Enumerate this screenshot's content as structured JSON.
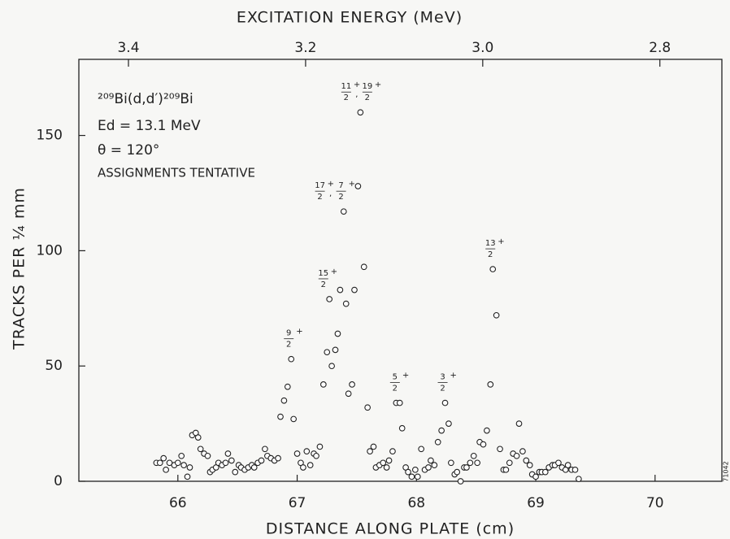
{
  "chart_data": {
    "type": "scatter",
    "x2label": "EXCITATION ENERGY (MeV)",
    "xlabel": "DISTANCE ALONG PLATE (cm)",
    "ylabel": "TRACKS PER ¼ mm",
    "info": [
      "²⁰⁹Bi(d,d′)²⁰⁹Bi",
      "Ed = 13.1 MeV",
      "θ  = 120°",
      "ASSIGNMENTS TENTATIVE"
    ],
    "figure_id": "71042",
    "xlim": [
      65.17,
      70.56
    ],
    "xticks": [
      66,
      67,
      68,
      69,
      70
    ],
    "x2lim": [
      3.456,
      2.73
    ],
    "x2ticks": [
      3.4,
      3.2,
      {
        "value": 3,
        "label": "3.0"
      },
      2.8
    ],
    "ylim": [
      0,
      183
    ],
    "yticks": [
      0,
      50,
      100,
      150
    ],
    "series": [
      {
        "name": "data",
        "color": "#222222",
        "x": [
          65.82,
          65.85,
          65.88,
          65.9,
          65.93,
          65.97,
          66.0,
          66.03,
          66.05,
          66.08,
          66.1,
          66.12,
          66.15,
          66.17,
          66.19,
          66.22,
          66.25,
          66.27,
          66.29,
          66.32,
          66.34,
          66.37,
          66.4,
          66.42,
          66.45,
          66.48,
          66.51,
          66.53,
          66.56,
          66.59,
          66.62,
          66.64,
          66.67,
          66.7,
          66.73,
          66.75,
          66.78,
          66.81,
          66.84,
          66.86,
          66.89,
          66.92,
          66.95,
          66.97,
          67.0,
          67.03,
          67.05,
          67.08,
          67.11,
          67.14,
          67.16,
          67.19,
          67.22,
          67.25,
          67.27,
          67.29,
          67.32,
          67.34,
          67.36,
          67.39,
          67.41,
          67.43,
          67.46,
          67.48,
          67.51,
          67.53,
          67.56,
          67.59,
          67.61,
          67.64,
          67.66,
          67.69,
          67.72,
          67.75,
          67.77,
          67.8,
          67.83,
          67.86,
          67.88,
          67.91,
          67.93,
          67.96,
          67.99,
          68.01,
          68.04,
          68.07,
          68.1,
          68.12,
          68.15,
          68.18,
          68.21,
          68.24,
          68.27,
          68.29,
          68.32,
          68.34,
          68.37,
          68.4,
          68.42,
          68.45,
          68.48,
          68.51,
          68.53,
          68.56,
          68.59,
          68.62,
          68.64,
          68.67,
          68.7,
          68.73,
          68.75,
          68.78,
          68.81,
          68.84,
          68.86,
          68.89,
          68.92,
          68.95,
          68.97,
          69.0,
          69.03,
          69.05,
          69.08,
          69.11,
          69.14,
          69.16,
          69.19,
          69.22,
          69.25,
          69.27,
          69.3,
          69.33,
          69.36
        ],
        "values": [
          8,
          8,
          10,
          5,
          8,
          7,
          8,
          11,
          7,
          2,
          6,
          20,
          21,
          19,
          14,
          12,
          11,
          4,
          5,
          6,
          8,
          7,
          8,
          12,
          9,
          4,
          7,
          6,
          5,
          6,
          7,
          6,
          8,
          9,
          14,
          11,
          10,
          9,
          10,
          28,
          35,
          41,
          53,
          27,
          12,
          8,
          6,
          13,
          7,
          12,
          11,
          15,
          42,
          56,
          79,
          50,
          57,
          64,
          83,
          117,
          77,
          38,
          42,
          83,
          128,
          160,
          93,
          32,
          13,
          15,
          6,
          7,
          8,
          6,
          9,
          13,
          34,
          34,
          23,
          6,
          4,
          2,
          5,
          2,
          14,
          5,
          6,
          9,
          7,
          17,
          22,
          34,
          25,
          8,
          3,
          4,
          0,
          6,
          6,
          8,
          11,
          8,
          17,
          16,
          22,
          42,
          92,
          72,
          14,
          5,
          5,
          8,
          12,
          11,
          25,
          13,
          9,
          7,
          3,
          2,
          4,
          4,
          4,
          6,
          7,
          7,
          8,
          6,
          5,
          7,
          5,
          5,
          1
        ]
      },
      {
        "name": "fit",
        "color": "#111111",
        "x": [
          66.84,
          66.89,
          66.95,
          67.0,
          67.05,
          67.14,
          67.19,
          67.22,
          67.25,
          67.27,
          67.29,
          67.32,
          67.34,
          67.36,
          67.39,
          67.41,
          67.43,
          67.46,
          67.48,
          67.51,
          67.53,
          67.56,
          67.59,
          67.61,
          67.66,
          67.75,
          67.8,
          67.83,
          67.86,
          67.88,
          67.91,
          67.96,
          68.01,
          68.1,
          68.15,
          68.21,
          68.24,
          68.27,
          68.29,
          68.34,
          68.42,
          68.53,
          68.59,
          68.62,
          68.64,
          68.67,
          68.7,
          68.75
        ],
        "values": [
          8,
          30,
          53,
          12,
          9,
          11,
          15,
          42,
          78,
          79,
          50,
          57,
          70,
          90,
          117,
          70,
          38,
          45,
          90,
          128,
          160,
          93,
          32,
          10,
          6,
          7,
          15,
          34,
          34,
          20,
          6,
          3,
          3,
          6,
          10,
          22,
          34,
          25,
          10,
          4,
          6,
          12,
          20,
          42,
          92,
          70,
          14,
          5
        ]
      }
    ],
    "annotations": [
      {
        "x": 66.95,
        "y": 53,
        "terms": [
          {
            "num": "9",
            "den": "2",
            "sign": "+"
          }
        ]
      },
      {
        "x": 67.24,
        "y": 79,
        "terms": [
          {
            "num": "15",
            "den": "2",
            "sign": "+"
          }
        ]
      },
      {
        "x": 67.3,
        "y": 117,
        "terms": [
          {
            "num": "17",
            "den": "2",
            "sign": "+"
          },
          {
            "num": "7",
            "den": "2",
            "sign": "+"
          }
        ]
      },
      {
        "x": 67.52,
        "y": 160,
        "terms": [
          {
            "num": "11",
            "den": "2",
            "sign": "+"
          },
          {
            "num": "19",
            "den": "2",
            "sign": "+"
          }
        ]
      },
      {
        "x": 67.84,
        "y": 34,
        "terms": [
          {
            "num": "5",
            "den": "2",
            "sign": "+"
          }
        ]
      },
      {
        "x": 68.24,
        "y": 34,
        "terms": [
          {
            "num": "3",
            "den": "2",
            "sign": "+"
          }
        ]
      },
      {
        "x": 68.64,
        "y": 92,
        "terms": [
          {
            "num": "13",
            "den": "2",
            "sign": "+"
          }
        ]
      }
    ]
  }
}
